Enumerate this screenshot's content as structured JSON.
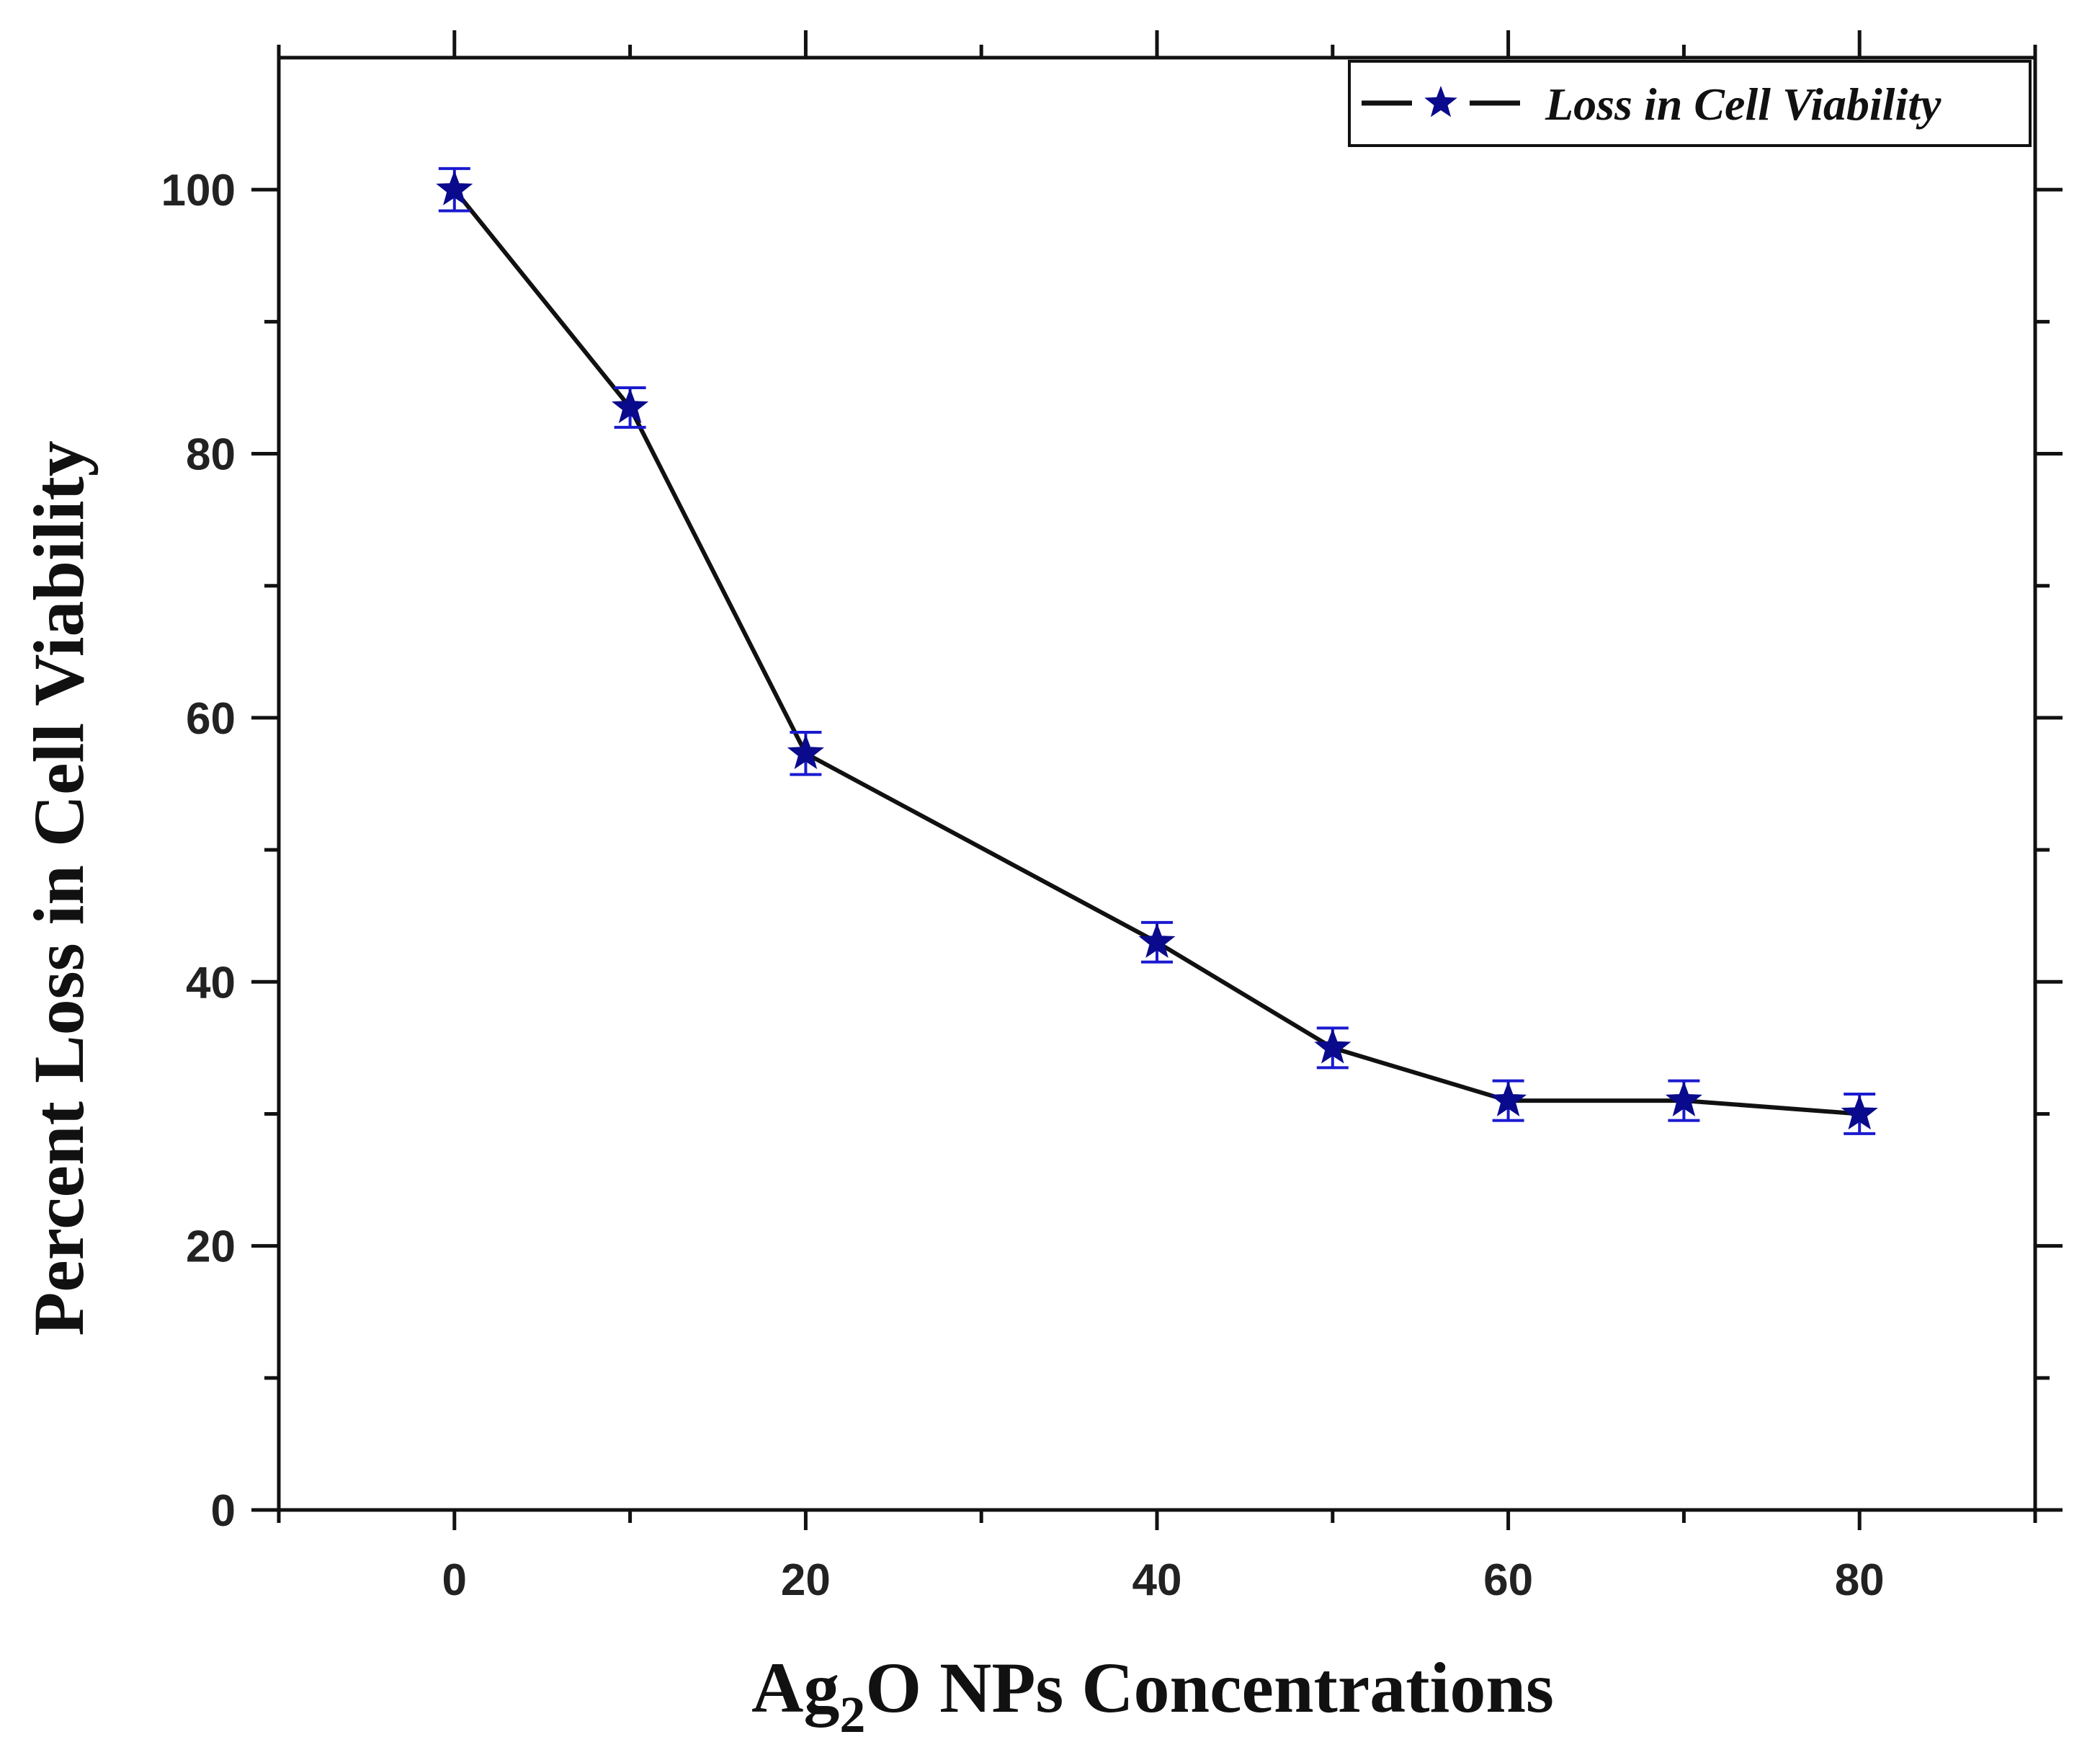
{
  "chart_data": {
    "type": "line",
    "xlabel": "Ag₂O NPs Concentrations",
    "xlabel_parts": {
      "main": "Ag",
      "sub": "2",
      "rest": "O NPs Concentrations"
    },
    "ylabel": "Percent Loss in Cell Viability",
    "xlim": [
      -10,
      90
    ],
    "ylim": [
      0,
      110
    ],
    "x_ticks_major": [
      0,
      20,
      40,
      60,
      80
    ],
    "x_ticks_minor": [
      -10,
      10,
      30,
      50,
      70,
      90
    ],
    "y_ticks_major": [
      0,
      20,
      40,
      60,
      80,
      100
    ],
    "y_ticks_minor": [
      10,
      30,
      50,
      70,
      90
    ],
    "grid": false,
    "legend_position": "top-right",
    "series": [
      {
        "name": "Loss in Cell Viability",
        "marker": "star",
        "line_color": "#111111",
        "marker_color": "#0a0a8c",
        "error_color": "#1a1ad0",
        "x": [
          0,
          10,
          20,
          40,
          50,
          60,
          70,
          80
        ],
        "y": [
          100,
          83.5,
          57.3,
          43,
          35,
          31,
          31,
          30
        ],
        "error": [
          1.6,
          1.5,
          1.6,
          1.5,
          1.5,
          1.5,
          1.5,
          1.5
        ]
      }
    ]
  }
}
